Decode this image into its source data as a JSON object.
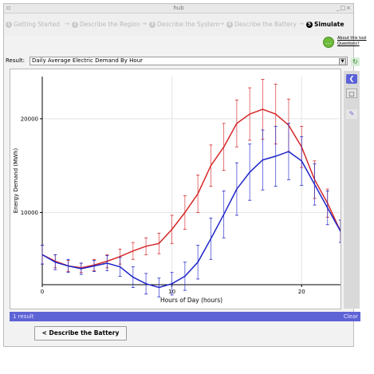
{
  "window": {
    "title": "hub"
  },
  "steps": [
    {
      "num": "1",
      "label": "Getting Started",
      "active": false
    },
    {
      "num": "2",
      "label": "Describe the Region",
      "active": false
    },
    {
      "num": "3",
      "label": "Describe the System",
      "active": false
    },
    {
      "num": "4",
      "label": "Describe the Battery",
      "active": false
    },
    {
      "num": "5",
      "label": "Simulate",
      "active": true
    }
  ],
  "step_arrow": "→",
  "help": {
    "line1": "About this tool",
    "line2": "Questions?"
  },
  "result": {
    "label": "Result:",
    "selected": "Daily Average Electric Demand By Hour"
  },
  "status": {
    "count_text": "1 result",
    "clear_label": "Clear"
  },
  "nav": {
    "back_label": "< Describe the Battery"
  },
  "colors": {
    "red_series": "#d62728",
    "blue_series": "#1f25c8",
    "status_bar": "#5e63d5"
  },
  "chart_data": {
    "type": "line",
    "xlabel": "Hours of Day (hours)",
    "ylabel": "Energy Demand (MWh)",
    "xlim": [
      0,
      23
    ],
    "ylim": [
      2300,
      24500
    ],
    "xticks": [
      0,
      10,
      20
    ],
    "yticks": [
      10000,
      20000
    ],
    "grid": true,
    "series": [
      {
        "color": "#d62728",
        "x": [
          0,
          1,
          2,
          3,
          4,
          5,
          6,
          7,
          8,
          9,
          10,
          11,
          12,
          13,
          14,
          15,
          16,
          17,
          18,
          19,
          20,
          21,
          22,
          23
        ],
        "y": [
          5500,
          4800,
          4300,
          4100,
          4400,
          4800,
          5300,
          5900,
          6400,
          6700,
          8200,
          10000,
          12000,
          15000,
          17000,
          19500,
          20500,
          21000,
          20500,
          19300,
          17000,
          13500,
          11000,
          8000
        ],
        "err": [
          1000,
          700,
          600,
          500,
          600,
          700,
          800,
          900,
          900,
          1100,
          1500,
          1800,
          2000,
          2200,
          2500,
          2500,
          2800,
          3200,
          3200,
          2800,
          2200,
          2000,
          1500,
          1200
        ]
      },
      {
        "color": "#1f25c8",
        "x": [
          0,
          1,
          2,
          3,
          4,
          5,
          6,
          7,
          8,
          9,
          10,
          11,
          12,
          13,
          14,
          15,
          16,
          17,
          18,
          19,
          20,
          21,
          22,
          23
        ],
        "y": [
          5500,
          4700,
          4300,
          4000,
          4300,
          4600,
          4200,
          3100,
          2400,
          2000,
          2400,
          3200,
          4700,
          7200,
          9800,
          12500,
          14300,
          15600,
          16000,
          16500,
          15500,
          13000,
          10500,
          8000
        ],
        "err": [
          1000,
          800,
          700,
          600,
          600,
          800,
          1000,
          1100,
          1100,
          1000,
          1200,
          1500,
          1800,
          2200,
          2500,
          2800,
          3000,
          3200,
          3200,
          3000,
          2600,
          2200,
          1800,
          1200
        ]
      }
    ]
  }
}
